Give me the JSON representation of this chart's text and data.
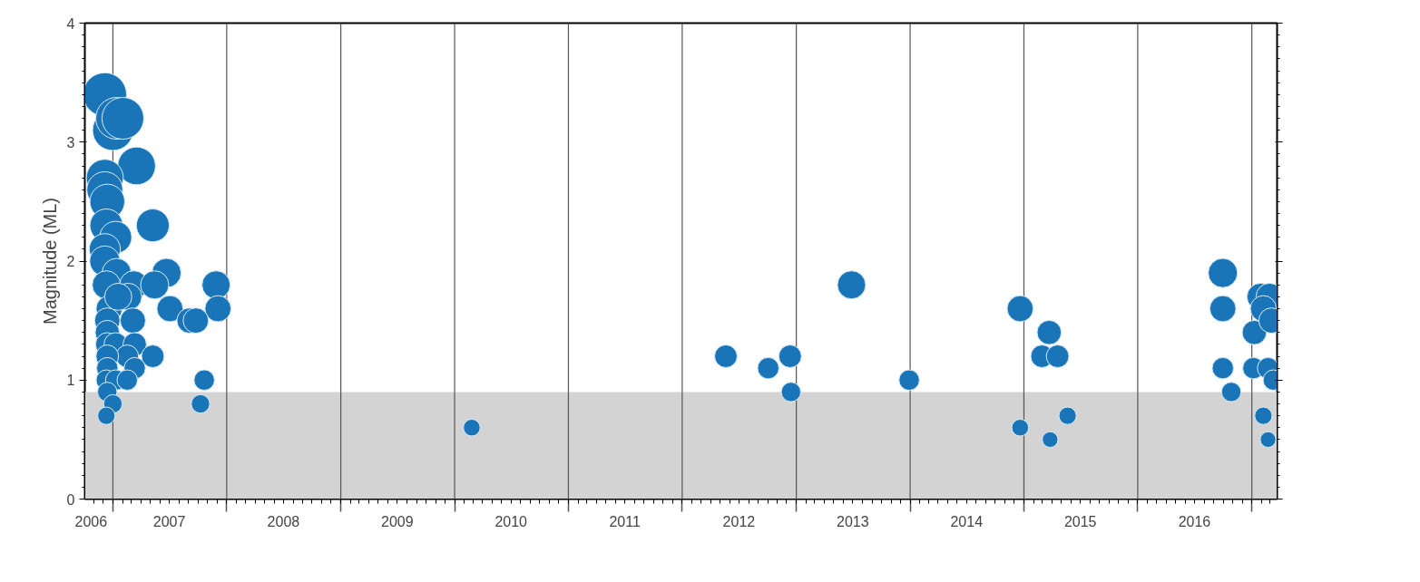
{
  "chart_data": {
    "type": "bubble",
    "ylabel": "Magnitude (ML)",
    "xlim": [
      "2006-10-03",
      "2017-03-23"
    ],
    "xticks": [
      {
        "value": "2007-01-01",
        "label": null
      },
      {
        "value": "2008-01-01",
        "label": null
      },
      {
        "value": "2009-01-01",
        "label": null
      },
      {
        "value": "2010-01-01",
        "label": null
      },
      {
        "value": "2011-01-01",
        "label": null
      },
      {
        "value": "2012-01-01",
        "label": null
      },
      {
        "value": "2013-01-01",
        "label": null
      },
      {
        "value": "2014-01-01",
        "label": null
      },
      {
        "value": "2015-01-01",
        "label": null
      },
      {
        "value": "2016-01-01",
        "label": null
      },
      {
        "value": "2017-01-01",
        "label": null
      },
      {
        "value": "2006-10-23",
        "label": "2006"
      },
      {
        "value": "2007-07-01",
        "label": "2007"
      },
      {
        "value": "2008-07-01",
        "label": "2008"
      },
      {
        "value": "2009-07-01",
        "label": "2009"
      },
      {
        "value": "2010-07-01",
        "label": "2010"
      },
      {
        "value": "2011-07-01",
        "label": "2011"
      },
      {
        "value": "2012-07-01",
        "label": "2012"
      },
      {
        "value": "2013-07-01",
        "label": "2013"
      },
      {
        "value": "2014-07-01",
        "label": "2014"
      },
      {
        "value": "2015-07-01",
        "label": "2015"
      },
      {
        "value": "2016-07-01",
        "label": "2016"
      }
    ],
    "ylim": [
      0,
      4
    ],
    "yticks": [
      0,
      1,
      2,
      3,
      4
    ],
    "grid": false,
    "bands": [
      {
        "axis": "y",
        "from": 0,
        "to": 0.9,
        "color": "#d3d3d3"
      }
    ],
    "ref_lines": [
      {
        "axis": "x",
        "value": "2007-01-01",
        "color": "#555555"
      },
      {
        "axis": "x",
        "value": "2008-01-01",
        "color": "#555555"
      },
      {
        "axis": "x",
        "value": "2009-01-01",
        "color": "#555555"
      },
      {
        "axis": "x",
        "value": "2010-01-01",
        "color": "#555555"
      },
      {
        "axis": "x",
        "value": "2011-01-01",
        "color": "#555555"
      },
      {
        "axis": "x",
        "value": "2012-01-01",
        "color": "#555555"
      },
      {
        "axis": "x",
        "value": "2013-01-01",
        "color": "#555555"
      },
      {
        "axis": "x",
        "value": "2014-01-01",
        "color": "#555555"
      },
      {
        "axis": "x",
        "value": "2015-01-01",
        "color": "#555555"
      },
      {
        "axis": "x",
        "value": "2016-01-01",
        "color": "#555555"
      },
      {
        "axis": "x",
        "value": "2017-01-01",
        "color": "#555555"
      }
    ],
    "series": [
      {
        "color": "#1a75b8",
        "x": [
          "2006-12-06",
          "2007-01-01",
          "2007-01-13",
          "2007-02-02",
          "2007-03-18",
          "2006-12-06",
          "2006-12-06",
          "2006-12-14",
          "2007-05-09",
          "2006-12-11",
          "2007-01-10",
          "2006-12-06",
          "2006-12-06",
          "2007-01-13",
          "2007-06-22",
          "2006-12-11",
          "2007-03-09",
          "2007-05-15",
          "2007-11-28",
          "2007-02-19",
          "2007-07-03",
          "2007-12-04",
          "2006-12-20",
          "2007-03-06",
          "2007-09-04",
          "2007-09-24",
          "2006-12-14",
          "2006-12-14",
          "2006-12-14",
          "2007-01-10",
          "2007-03-12",
          "2007-02-16",
          "2007-05-09",
          "2006-12-14",
          "2007-03-12",
          "2006-12-14",
          "2006-12-11",
          "2007-01-10",
          "2007-02-16",
          "2007-10-21",
          "2006-12-14",
          "2007-01-01",
          "2007-10-09",
          "2006-12-11",
          "2010-02-25",
          "2012-05-20",
          "2012-10-03",
          "2012-12-12",
          "2012-12-15",
          "2013-06-27",
          "2013-12-29",
          "2014-12-20",
          "2014-12-20",
          "2015-03-23",
          "2015-02-28",
          "2015-04-19",
          "2015-03-26",
          "2015-05-21",
          "2016-09-30",
          "2016-09-30",
          "2016-09-30",
          "2016-10-27",
          "2017-01-09",
          "2017-01-06",
          "2017-01-29",
          "2017-02-27",
          "2017-02-07",
          "2017-03-05",
          "2017-02-22",
          "2017-03-11",
          "2017-02-07",
          "2017-02-22",
          "2007-01-18"
        ],
        "values": [
          3.4,
          3.1,
          3.2,
          3.2,
          2.8,
          2.7,
          2.6,
          2.5,
          2.3,
          2.3,
          2.2,
          2.1,
          2.0,
          1.9,
          1.9,
          1.8,
          1.8,
          1.8,
          1.8,
          1.7,
          1.6,
          1.6,
          1.6,
          1.5,
          1.5,
          1.5,
          1.5,
          1.4,
          1.3,
          1.3,
          1.3,
          1.2,
          1.2,
          1.2,
          1.1,
          1.1,
          1.0,
          1.0,
          1.0,
          1.0,
          0.9,
          0.8,
          0.8,
          0.7,
          0.6,
          1.2,
          1.1,
          1.2,
          0.9,
          1.8,
          1.0,
          1.6,
          0.6,
          1.4,
          1.2,
          1.2,
          0.5,
          0.7,
          1.9,
          1.6,
          1.1,
          0.9,
          1.4,
          1.1,
          1.7,
          1.7,
          1.6,
          1.5,
          1.1,
          1.0,
          0.7,
          0.5,
          1.7
        ],
        "sizes": [
          1.0,
          0.87,
          0.92,
          0.92,
          0.75,
          0.72,
          0.68,
          0.64,
          0.57,
          0.57,
          0.54,
          0.51,
          0.48,
          0.45,
          0.45,
          0.42,
          0.42,
          0.42,
          0.42,
          0.39,
          0.36,
          0.36,
          0.36,
          0.34,
          0.34,
          0.34,
          0.34,
          0.31,
          0.29,
          0.29,
          0.29,
          0.27,
          0.27,
          0.27,
          0.24,
          0.24,
          0.22,
          0.22,
          0.22,
          0.22,
          0.2,
          0.18,
          0.18,
          0.16,
          0.15,
          0.27,
          0.24,
          0.27,
          0.2,
          0.42,
          0.22,
          0.36,
          0.15,
          0.31,
          0.27,
          0.27,
          0.13,
          0.16,
          0.45,
          0.36,
          0.24,
          0.2,
          0.31,
          0.24,
          0.39,
          0.39,
          0.36,
          0.34,
          0.24,
          0.22,
          0.16,
          0.13,
          0.39
        ]
      }
    ]
  }
}
